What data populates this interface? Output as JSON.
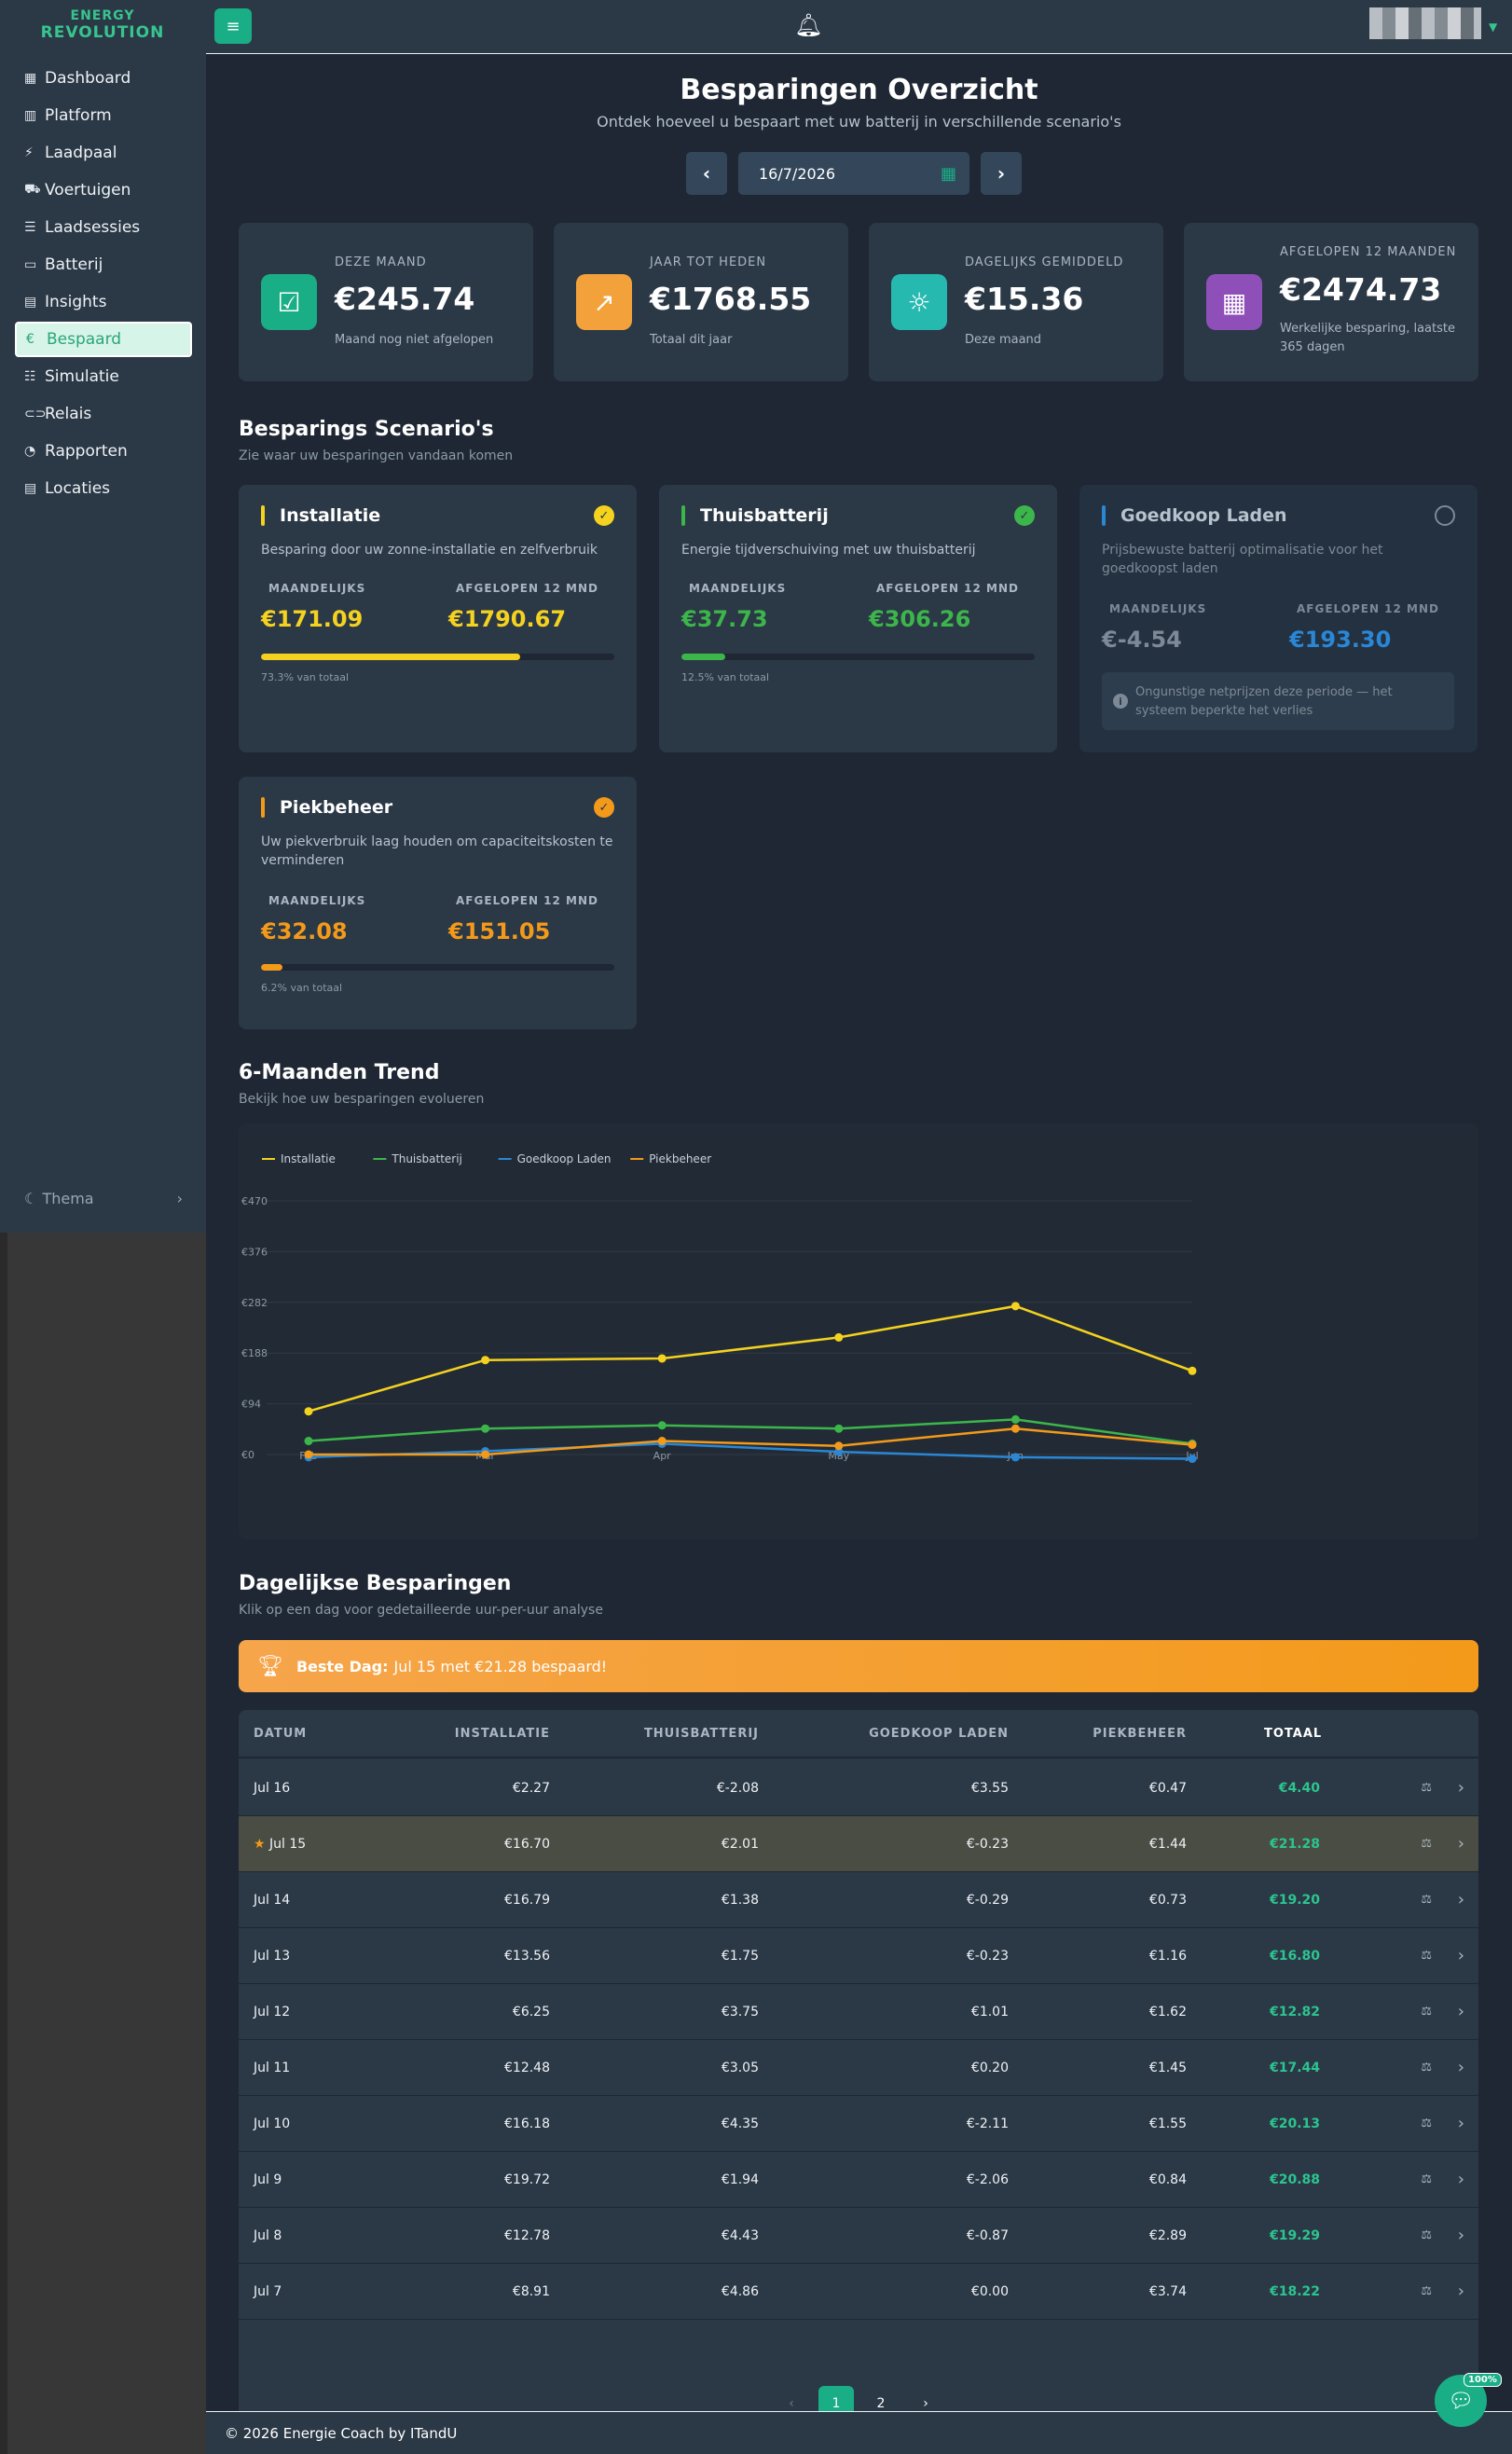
{
  "app": {
    "logo_line1": "ENERGY",
    "logo_line2": "REVOLUTION"
  },
  "sidebar": {
    "items": [
      {
        "label": "Dashboard",
        "icon": "grid-icon"
      },
      {
        "label": "Platform",
        "icon": "bar-chart-icon"
      },
      {
        "label": "Laadpaal",
        "icon": "charging-station-icon"
      },
      {
        "label": "Voertuigen",
        "icon": "car-icon"
      },
      {
        "label": "Laadsessies",
        "icon": "list-icon"
      },
      {
        "label": "Batterij",
        "icon": "battery-icon"
      },
      {
        "label": "Insights",
        "icon": "calendar-icon"
      },
      {
        "label": "Bespaard",
        "icon": "euro-icon",
        "active": true
      },
      {
        "label": "Simulatie",
        "icon": "sliders-icon"
      },
      {
        "label": "Relais",
        "icon": "toggle-icon"
      },
      {
        "label": "Rapporten",
        "icon": "pie-chart-icon"
      },
      {
        "label": "Locaties",
        "icon": "table-icon"
      }
    ],
    "theme_label": "Thema"
  },
  "header": {
    "title": "Besparingen Overzicht",
    "subtitle": "Ontdek hoeveel u bespaart met uw batterij in verschillende scenario's",
    "date_value": "16/7/2026"
  },
  "stats": [
    {
      "label": "DEZE MAAND",
      "value": "€245.74",
      "sub": "Maand nog niet afgelopen",
      "icon": "calendar-check-icon",
      "color": "#1aae86"
    },
    {
      "label": "JAAR TOT HEDEN",
      "value": "€1768.55",
      "sub": "Totaal dit jaar",
      "icon": "trend-up-icon",
      "color": "#f3a13a"
    },
    {
      "label": "DAGELIJKS GEMIDDELD",
      "value": "€15.36",
      "sub": "Deze maand",
      "icon": "sun-icon",
      "color": "#26b9b0"
    },
    {
      "label": "AFGELOPEN 12 MAANDEN",
      "value": "€2474.73",
      "sub": "Werkelijke besparing, laatste 365 dagen",
      "icon": "calendar-grid-icon",
      "color": "#8e4fb8"
    }
  ],
  "scenarios_section": {
    "title": "Besparings Scenario's",
    "subtitle": "Zie waar uw besparingen vandaan komen",
    "monthly_label": "MAANDELIJKS",
    "year_label": "AFGELOPEN 12 MND"
  },
  "scenarios": [
    {
      "name": "Installatie",
      "desc": "Besparing door uw zonne-installatie en zelfverbruik",
      "monthly": "€171.09",
      "year": "€1790.67",
      "pct_text": "73.3% van totaal",
      "pct": 73.3,
      "color": "#f4d21f"
    },
    {
      "name": "Thuisbatterij",
      "desc": "Energie tijdverschuiving met uw thuisbatterij",
      "monthly": "€37.73",
      "year": "€306.26",
      "pct_text": "12.5% van totaal",
      "pct": 12.5,
      "color": "#3cb64b"
    },
    {
      "name": "Goedkoop Laden",
      "desc": "Prijsbewuste batterij optimalisatie voor het goedkoopst laden",
      "monthly": "€-4.54",
      "year": "€193.30",
      "note": "Ongunstige netprijzen deze periode — het systeem beperkte het verlies",
      "color": "#2a87d6"
    },
    {
      "name": "Piekbeheer",
      "desc": "Uw piekverbruik laag houden om capaciteitskosten te verminderen",
      "monthly": "€32.08",
      "year": "€151.05",
      "pct_text": "6.2% van totaal",
      "pct": 6.2,
      "color": "#f39a1a"
    }
  ],
  "trend_section": {
    "title": "6-Maanden Trend",
    "subtitle": "Bekijk hoe uw besparingen evolueren"
  },
  "chart_data": {
    "type": "line",
    "categories": [
      "Feb",
      "Mar",
      "Apr",
      "May",
      "Jun",
      "Jul"
    ],
    "y_ticks": [
      "€0",
      "€94",
      "€188",
      "€282",
      "€376",
      "€470"
    ],
    "ylim": [
      0,
      470
    ],
    "grid": true,
    "legend_position": "top-left",
    "series": [
      {
        "name": "Installatie",
        "color": "#f4d21f",
        "values": [
          80,
          175,
          178,
          217,
          275,
          155
        ]
      },
      {
        "name": "Thuisbatterij",
        "color": "#3cb64b",
        "values": [
          25,
          48,
          54,
          48,
          65,
          20
        ]
      },
      {
        "name": "Goedkoop Laden",
        "color": "#2a87d6",
        "values": [
          -5,
          6,
          20,
          5,
          -5,
          -8
        ]
      },
      {
        "name": "Piekbeheer",
        "color": "#f39a1a",
        "values": [
          0,
          0,
          25,
          16,
          48,
          18
        ]
      }
    ]
  },
  "daily_section": {
    "title": "Dagelijkse Besparingen",
    "subtitle": "Klik op een dag voor gedetailleerde uur-per-uur analyse",
    "best_label": "Beste Dag:",
    "best_text": "Jul 15 met €21.28 bespaard!"
  },
  "table": {
    "headers": [
      "DATUM",
      "INSTALLATIE",
      "THUISBATTERIJ",
      "GOEDKOOP LADEN",
      "PIEKBEHEER",
      "TOTAAL"
    ],
    "rows": [
      {
        "date": "Jul 16",
        "inst": "€2.27",
        "thu": "€-2.08",
        "goe": "€3.55",
        "piek": "€0.47",
        "tot": "€4.40"
      },
      {
        "date": "Jul 15",
        "inst": "€16.70",
        "thu": "€2.01",
        "goe": "€-0.23",
        "piek": "€1.44",
        "tot": "€21.28",
        "best": true
      },
      {
        "date": "Jul 14",
        "inst": "€16.79",
        "thu": "€1.38",
        "goe": "€-0.29",
        "piek": "€0.73",
        "tot": "€19.20"
      },
      {
        "date": "Jul 13",
        "inst": "€13.56",
        "thu": "€1.75",
        "goe": "€-0.23",
        "piek": "€1.16",
        "tot": "€16.80"
      },
      {
        "date": "Jul 12",
        "inst": "€6.25",
        "thu": "€3.75",
        "goe": "€1.01",
        "piek": "€1.62",
        "tot": "€12.82"
      },
      {
        "date": "Jul 11",
        "inst": "€12.48",
        "thu": "€3.05",
        "goe": "€0.20",
        "piek": "€1.45",
        "tot": "€17.44"
      },
      {
        "date": "Jul 10",
        "inst": "€16.18",
        "thu": "€4.35",
        "goe": "€-2.11",
        "piek": "€1.55",
        "tot": "€20.13"
      },
      {
        "date": "Jul 9",
        "inst": "€19.72",
        "thu": "€1.94",
        "goe": "€-2.06",
        "piek": "€0.84",
        "tot": "€20.88"
      },
      {
        "date": "Jul 8",
        "inst": "€12.78",
        "thu": "€4.43",
        "goe": "€-0.87",
        "piek": "€2.89",
        "tot": "€19.29"
      },
      {
        "date": "Jul 7",
        "inst": "€8.91",
        "thu": "€4.86",
        "goe": "€0.00",
        "piek": "€3.74",
        "tot": "€18.22"
      }
    ],
    "pages": [
      "1",
      "2"
    ]
  },
  "footer": {
    "text": "© 2026 Energie Coach by ITandU"
  },
  "chat": {
    "badge": "100%"
  }
}
